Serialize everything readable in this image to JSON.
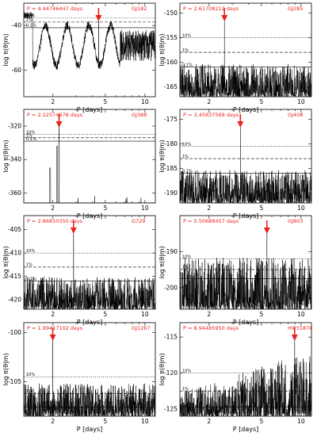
{
  "figure": {
    "xlabel": "P [days]",
    "ylabel": "log π(θ|m)",
    "x_scale": "log",
    "x_ticks": [
      2,
      5,
      10
    ],
    "fap_labels": [
      "10%",
      "1%",
      "0.1%"
    ],
    "arrow_color": "#e8231f"
  },
  "chart_data": [
    {
      "type": "line",
      "star": "GJ182",
      "period_label": "P = 4.44746447 days",
      "peak_period": 4.447,
      "xlim": [
        1.2,
        12
      ],
      "ylim": [
        -72,
        -30
      ],
      "yticks": [
        -40,
        -60
      ],
      "fap": {
        "10%": -36.5,
        "1%": -38.5,
        "0.1%": -41
      },
      "profile": "gj182"
    },
    {
      "type": "line",
      "star": "GJ285",
      "period_label": "P = 2.61708212 days",
      "peak_period": 2.617,
      "xlim": [
        1.2,
        12
      ],
      "ylim": [
        -167,
        -148
      ],
      "yticks": [
        -150,
        -155,
        -160,
        -165
      ],
      "fap": {
        "10%": -155,
        "1%": -158,
        "0.1%": -161
      },
      "profile": "noise"
    },
    {
      "type": "line",
      "star": "GJ388",
      "period_label": "P = 2.22574878 days",
      "peak_period": 2.226,
      "xlim": [
        1.2,
        12
      ],
      "ylim": [
        -366,
        -310
      ],
      "yticks": [
        -320,
        -340,
        -360
      ],
      "fap": {
        "10%": -325,
        "1%": -327,
        "0.1%": -329
      },
      "profile": "gj388"
    },
    {
      "type": "line",
      "star": "GJ408",
      "period_label": "P = 3.45837569 days",
      "peak_period": 3.458,
      "xlim": [
        1.2,
        12
      ],
      "ylim": [
        -192,
        -173
      ],
      "yticks": [
        -175,
        -180,
        -185,
        -190
      ],
      "fap": {
        "10%": -180.5,
        "1%": -183,
        "0.1%": -186
      },
      "profile": "noise"
    },
    {
      "type": "line",
      "star": "G729",
      "period_label": "P = 2.86810350 days",
      "peak_period": 2.868,
      "xlim": [
        1.2,
        12
      ],
      "ylim": [
        -422,
        -402
      ],
      "yticks": [
        -405,
        -410,
        -415,
        -420
      ],
      "fap": {
        "10%": -410,
        "1%": -413,
        "0.1%": -416
      },
      "profile": "noise"
    },
    {
      "type": "line",
      "star": "GJ803",
      "period_label": "P = 5.50688457 days",
      "peak_period": 5.507,
      "xlim": [
        1.2,
        12
      ],
      "ylim": [
        -206,
        -180
      ],
      "yticks": [
        -190,
        -200
      ],
      "fap": {
        "10%": -192,
        "1%": -195,
        "0.1%": -197.5
      },
      "profile": "dense"
    },
    {
      "type": "line",
      "star": "GJ1267",
      "period_label": "P = 1.99417102 days",
      "peak_period": 1.994,
      "xlim": [
        1.2,
        12
      ],
      "ylim": [
        -108.5,
        -99
      ],
      "yticks": [
        -100,
        -105
      ],
      "fap": {
        "10%": -104.5,
        "1%": -106.2,
        "0.1%": -107.6
      },
      "profile": "noise"
    },
    {
      "type": "line",
      "star": "HIP31878",
      "period_label": "P = 8.94485950 days",
      "peak_period": 8.945,
      "xlim": [
        1.2,
        12
      ],
      "ylim": [
        -126,
        -113
      ],
      "yticks": [
        -115,
        -120,
        -125
      ],
      "fap": {
        "10%": -120,
        "1%": -122.5,
        "0.1%": -124.7
      },
      "profile": "rising"
    }
  ]
}
